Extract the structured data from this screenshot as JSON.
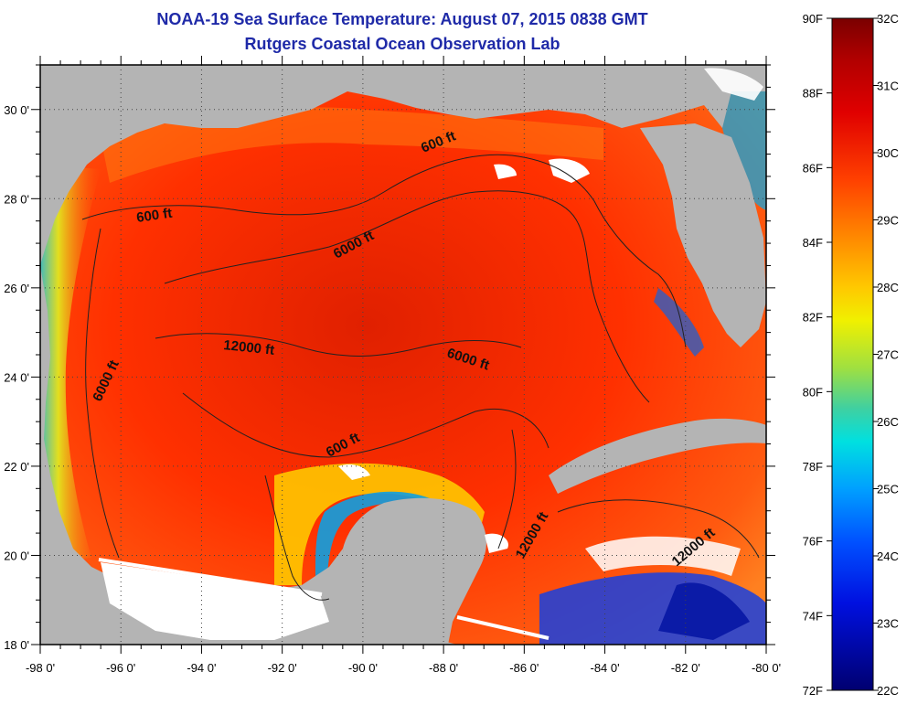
{
  "title": "NOAA-19 Sea Surface Temperature:  August 07, 2015 0838 GMT",
  "subtitle": "Rutgers Coastal Ocean Observation Lab",
  "colors": {
    "land": "#b4b4b4",
    "cloud": "#ffffff",
    "frame": "#000000",
    "title": "#1f2aa8"
  },
  "axes": {
    "x_ticks": [
      "-98 0'",
      "-96 0'",
      "-94 0'",
      "-92 0'",
      "-90 0'",
      "-88 0'",
      "-86 0'",
      "-84 0'",
      "-82 0'",
      "-80 0'"
    ],
    "y_ticks": [
      "30 0'",
      "28 0'",
      "26 0'",
      "24 0'",
      "22 0'",
      "20 0'",
      "18 0'"
    ],
    "lon_range": [
      -98,
      -80
    ],
    "lat_range": [
      18,
      31
    ]
  },
  "contour_labels": [
    "600 ft",
    "600 ft",
    "600 ft",
    "6000 ft",
    "6000 ft",
    "6000 ft",
    "12000 ft",
    "12000 ft",
    "12000 ft"
  ],
  "colorbar": {
    "f_labels": [
      "90F",
      "88F",
      "86F",
      "84F",
      "82F",
      "80F",
      "78F",
      "76F",
      "74F",
      "72F"
    ],
    "c_labels": [
      "32C",
      "31C",
      "30C",
      "29C",
      "28C",
      "27C",
      "26C",
      "25C",
      "24C",
      "23C",
      "22C"
    ]
  }
}
